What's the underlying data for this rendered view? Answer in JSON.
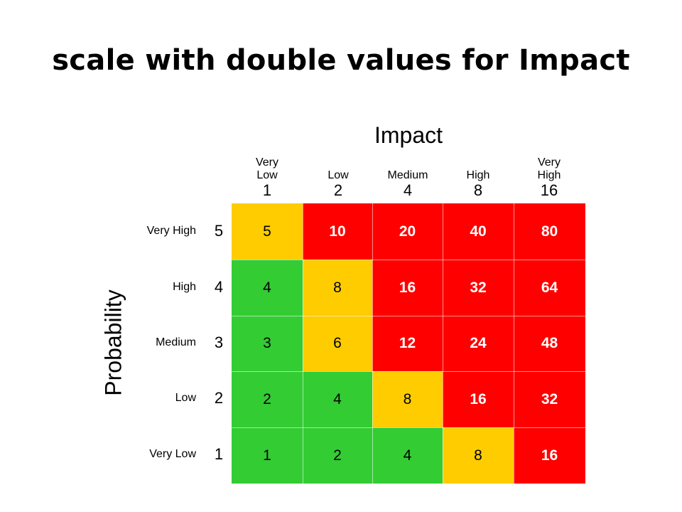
{
  "title": "scale with double values for Impact",
  "chart_data": {
    "type": "heatmap",
    "x_axis_title": "Impact",
    "y_axis_title": "Probability",
    "columns": [
      {
        "label": "Very\nLow",
        "value": "1"
      },
      {
        "label": "Low",
        "value": "2"
      },
      {
        "label": "Medium",
        "value": "4"
      },
      {
        "label": "High",
        "value": "8"
      },
      {
        "label": "Very\nHigh",
        "value": "16"
      }
    ],
    "rows": [
      {
        "label": "Very High",
        "value": "5",
        "cells": [
          {
            "v": "5",
            "c": "yellow"
          },
          {
            "v": "10",
            "c": "red"
          },
          {
            "v": "20",
            "c": "red"
          },
          {
            "v": "40",
            "c": "red"
          },
          {
            "v": "80",
            "c": "red"
          }
        ]
      },
      {
        "label": "High",
        "value": "4",
        "cells": [
          {
            "v": "4",
            "c": "green"
          },
          {
            "v": "8",
            "c": "yellow"
          },
          {
            "v": "16",
            "c": "red"
          },
          {
            "v": "32",
            "c": "red"
          },
          {
            "v": "64",
            "c": "red"
          }
        ]
      },
      {
        "label": "Medium",
        "value": "3",
        "cells": [
          {
            "v": "3",
            "c": "green"
          },
          {
            "v": "6",
            "c": "yellow"
          },
          {
            "v": "12",
            "c": "red"
          },
          {
            "v": "24",
            "c": "red"
          },
          {
            "v": "48",
            "c": "red"
          }
        ]
      },
      {
        "label": "Low",
        "value": "2",
        "cells": [
          {
            "v": "2",
            "c": "green"
          },
          {
            "v": "4",
            "c": "green"
          },
          {
            "v": "8",
            "c": "yellow"
          },
          {
            "v": "16",
            "c": "red"
          },
          {
            "v": "32",
            "c": "red"
          }
        ]
      },
      {
        "label": "Very Low",
        "value": "1",
        "cells": [
          {
            "v": "1",
            "c": "green"
          },
          {
            "v": "2",
            "c": "green"
          },
          {
            "v": "4",
            "c": "green"
          },
          {
            "v": "8",
            "c": "yellow"
          },
          {
            "v": "16",
            "c": "red"
          }
        ]
      }
    ],
    "colors": {
      "green": "#33cc33",
      "yellow": "#ffcc00",
      "red": "#ff0000"
    }
  }
}
